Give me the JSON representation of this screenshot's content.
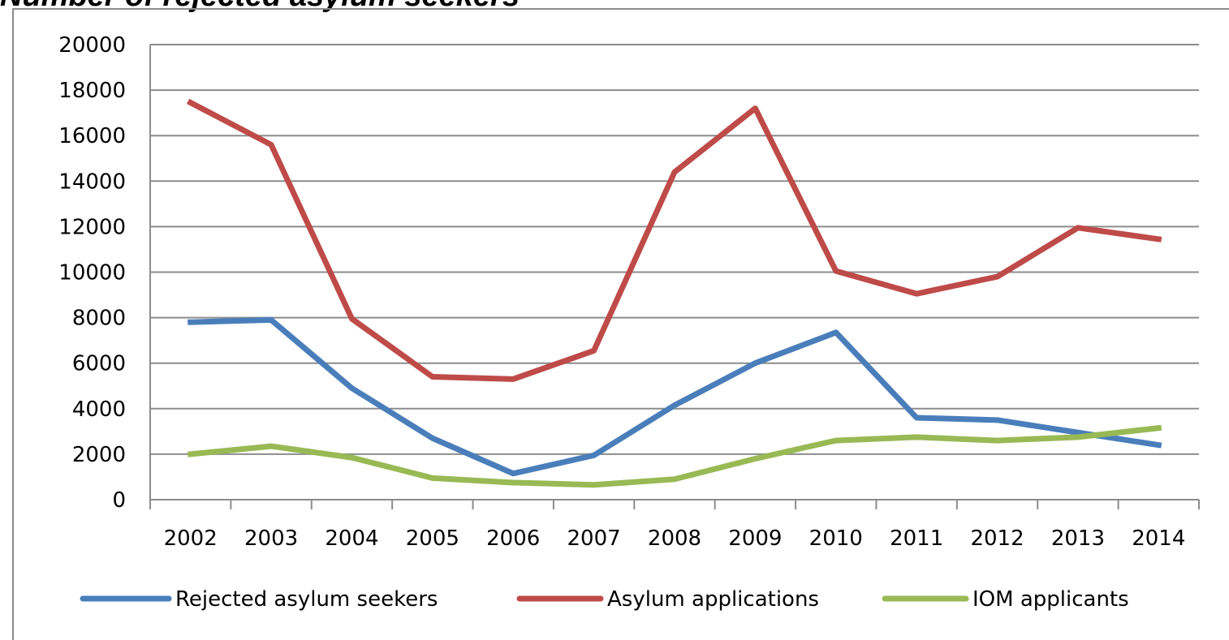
{
  "chart_data": {
    "type": "line",
    "title": "Number of rejected asylum seekers",
    "xlabel": "",
    "ylabel": "",
    "categories": [
      "2002",
      "2003",
      "2004",
      "2005",
      "2006",
      "2007",
      "2008",
      "2009",
      "2010",
      "2011",
      "2012",
      "2013",
      "2014"
    ],
    "yticks": [
      "0",
      "2000",
      "4000",
      "6000",
      "8000",
      "10000",
      "12000",
      "14000",
      "16000",
      "18000",
      "20000"
    ],
    "ylim": [
      0,
      20000
    ],
    "grid": true,
    "legend_position": "bottom",
    "series": [
      {
        "name": "Rejected asylum seekers",
        "color": "#4a7ebb",
        "values": [
          7800,
          7900,
          4900,
          2700,
          1150,
          1950,
          4150,
          6000,
          7350,
          3600,
          3500,
          2950,
          2400
        ]
      },
      {
        "name": "Asylum applications",
        "color": "#be4b48",
        "values": [
          17450,
          15600,
          7950,
          5400,
          5300,
          6550,
          14400,
          17200,
          10050,
          9050,
          9800,
          11950,
          11450
        ]
      },
      {
        "name": "IOM applicants",
        "color": "#98b954",
        "values": [
          2000,
          2350,
          1850,
          950,
          750,
          650,
          900,
          1800,
          2600,
          2750,
          2600,
          2750,
          3150
        ]
      }
    ]
  }
}
